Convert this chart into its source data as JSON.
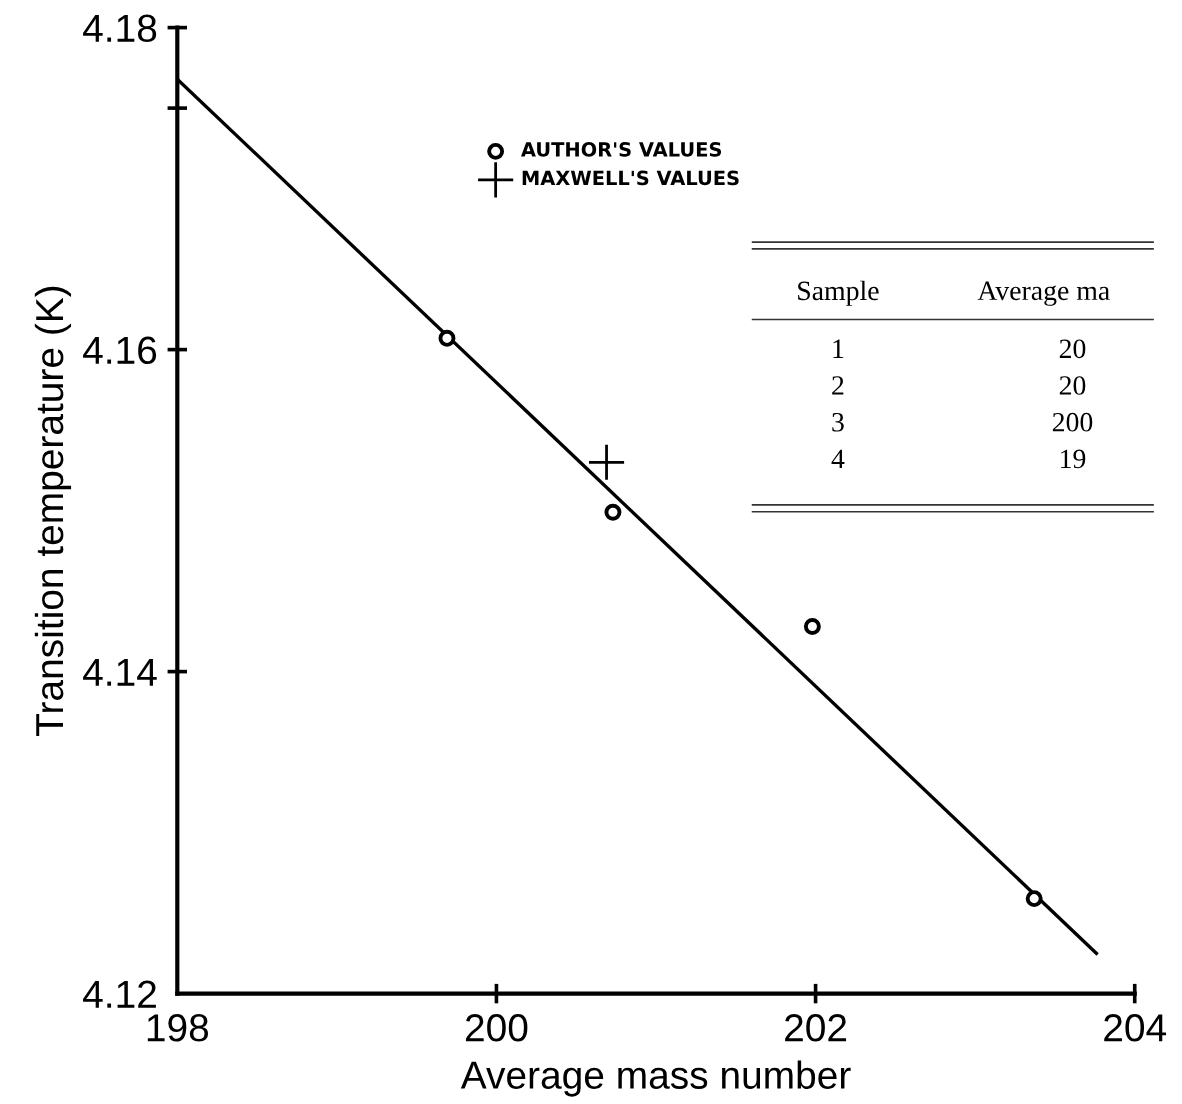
{
  "chart_data": {
    "type": "scatter",
    "xlabel": "Average mass number",
    "ylabel": "Transition temperature (K)",
    "xlim": [
      198,
      204
    ],
    "xticks": [
      198,
      200,
      202,
      204
    ],
    "ylim": [
      4.12,
      4.18
    ],
    "yticks": [
      4.12,
      4.14,
      4.16,
      {
        "value": 4.175,
        "label": null
      },
      4.18
    ],
    "series": [
      {
        "name": "AUTHOR'S VALUES",
        "marker": "circle",
        "color": "#000000",
        "x": [
          199.69,
          200.73,
          201.98,
          203.37
        ],
        "values": [
          4.1607,
          4.1499,
          4.1428,
          4.1259
        ]
      },
      {
        "name": "MAXWELL'S VALUES",
        "marker": "cross",
        "color": "#000000",
        "x": [
          200.69
        ],
        "values": [
          4.153
        ]
      },
      {
        "type": "line",
        "marker": "none",
        "color": "#000000",
        "x": [
          198,
          203.76
        ],
        "values": [
          4.1768,
          4.1225
        ]
      }
    ],
    "legend": "top",
    "grid": false,
    "annotations": [
      "Sample",
      "Average ma",
      "1",
      "20",
      "2",
      "20",
      "3",
      "200",
      "4",
      "19"
    ]
  }
}
